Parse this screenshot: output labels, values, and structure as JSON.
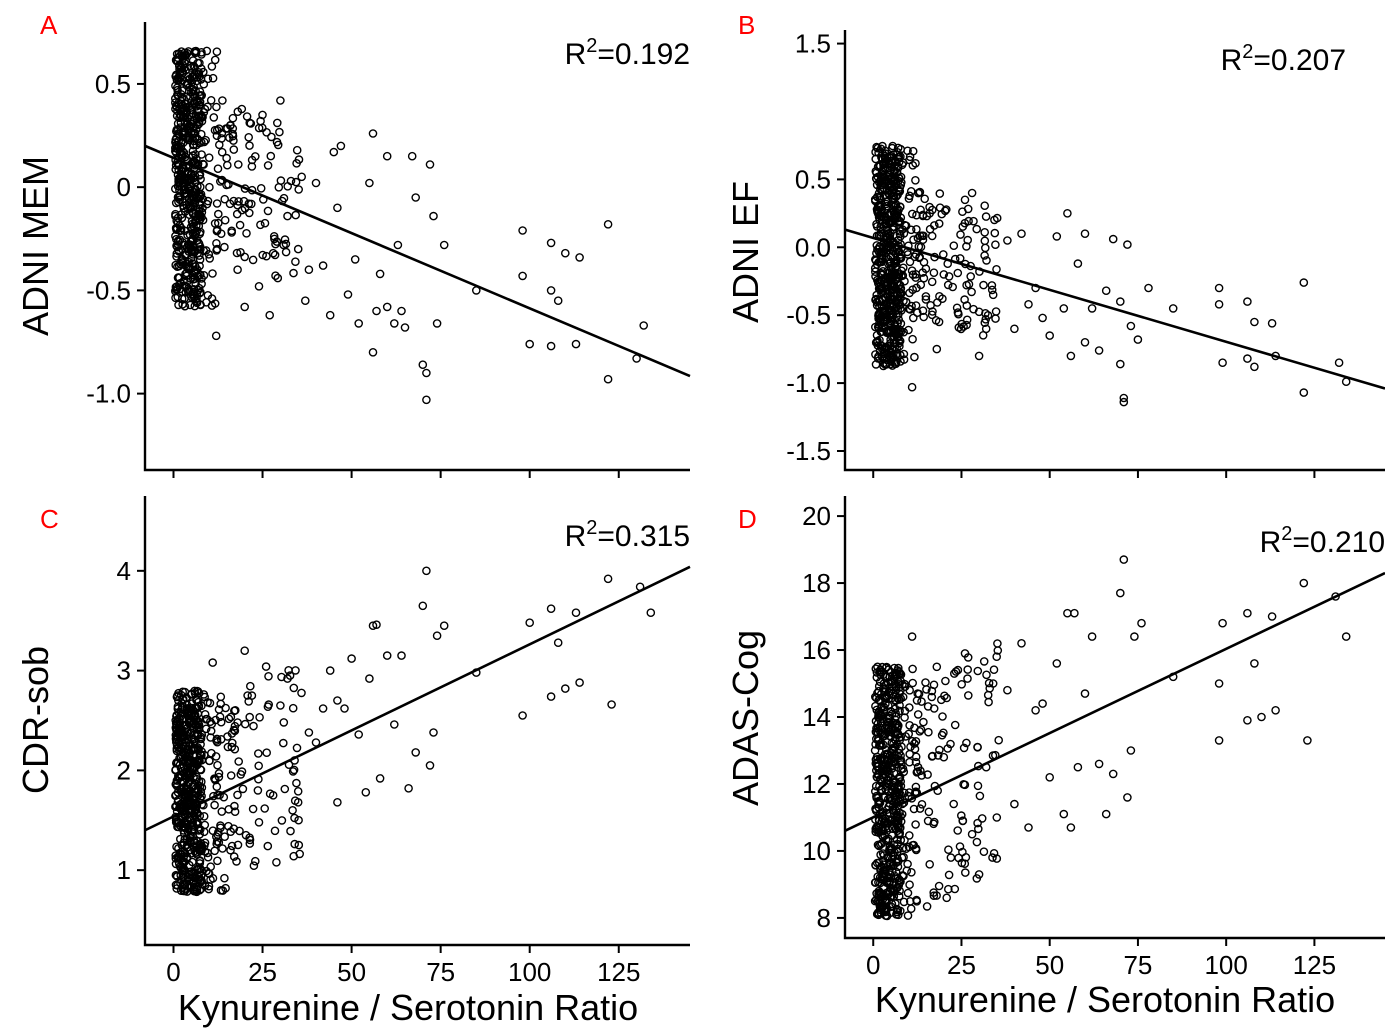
{
  "chart_data": [
    {
      "type": "scatter",
      "panel_label": "A",
      "ylabel": "ADNI MEM",
      "xlabel": "",
      "r2_prefix": "R",
      "r2_sup": "2",
      "r2_value": "=0.192",
      "xlim": [
        -8,
        145
      ],
      "ylim": [
        -1.37,
        0.8
      ],
      "y_ticks": [
        0.5,
        0,
        -0.5,
        -1.0
      ],
      "y_tick_labels": [
        "0.5",
        "0",
        "-0.5",
        "-1.0"
      ],
      "x_ticks": [
        0,
        25,
        50,
        75,
        100,
        125
      ],
      "x_tick_labels": [],
      "fit_line": {
        "x": [
          -8,
          145
        ],
        "y": [
          0.2,
          -0.915
        ]
      },
      "spread": 0.18,
      "cluster_range": [
        -0.58,
        0.66
      ],
      "outer": [
        [
          12,
          -0.72
        ],
        [
          20,
          -0.58
        ],
        [
          25,
          0.35
        ],
        [
          27,
          -0.62
        ],
        [
          30,
          0.42
        ],
        [
          33,
          0.03
        ],
        [
          35,
          -0.3
        ],
        [
          37,
          -0.55
        ],
        [
          40,
          0.02
        ],
        [
          42,
          -0.38
        ],
        [
          44,
          -0.62
        ],
        [
          45,
          0.17
        ],
        [
          47,
          0.2
        ],
        [
          49,
          -0.52
        ],
        [
          51,
          -0.35
        ],
        [
          52,
          -0.66
        ],
        [
          55,
          0.02
        ],
        [
          56,
          0.26
        ],
        [
          56,
          -0.8
        ],
        [
          57,
          -0.6
        ],
        [
          58,
          -0.42
        ],
        [
          60,
          0.15
        ],
        [
          60,
          -0.58
        ],
        [
          62,
          -0.66
        ],
        [
          63,
          -0.28
        ],
        [
          64,
          -0.6
        ],
        [
          65,
          -0.68
        ],
        [
          67,
          0.15
        ],
        [
          68,
          -0.05
        ],
        [
          70,
          -0.86
        ],
        [
          71,
          -0.9
        ],
        [
          71,
          -1.03
        ],
        [
          72,
          0.11
        ],
        [
          73,
          -0.14
        ],
        [
          74,
          -0.66
        ],
        [
          76,
          -0.28
        ],
        [
          85,
          -0.5
        ],
        [
          98,
          -0.21
        ],
        [
          98,
          -0.43
        ],
        [
          100,
          -0.76
        ],
        [
          106,
          -0.27
        ],
        [
          106,
          -0.5
        ],
        [
          108,
          -0.55
        ],
        [
          106,
          -0.77
        ],
        [
          110,
          -0.32
        ],
        [
          114,
          -0.34
        ],
        [
          113,
          -0.76
        ],
        [
          122,
          -0.18
        ],
        [
          122,
          -0.93
        ],
        [
          132,
          -0.67
        ],
        [
          130,
          -0.83
        ],
        [
          16,
          0.3
        ],
        [
          18,
          -0.4
        ],
        [
          22,
          0.1
        ],
        [
          24,
          -0.48
        ],
        [
          28,
          -0.32
        ],
        [
          32,
          -0.14
        ],
        [
          36,
          0.05
        ],
        [
          38,
          -0.4
        ],
        [
          46,
          -0.1
        ]
      ]
    },
    {
      "type": "scatter",
      "panel_label": "B",
      "ylabel": "ADNI EF",
      "xlabel": "",
      "r2_prefix": "R",
      "r2_sup": "2",
      "r2_value": "=0.207",
      "xlim": [
        -8,
        145
      ],
      "ylim": [
        -1.64,
        1.6
      ],
      "y_ticks": [
        1.5,
        0.5,
        0.0,
        -0.5,
        -1.0,
        -1.5
      ],
      "y_tick_labels": [
        "1.5",
        "0.5",
        "0.0",
        "-0.5",
        "-1.0",
        "-1.5"
      ],
      "x_ticks": [
        0,
        25,
        50,
        75,
        100,
        125
      ],
      "x_tick_labels": [],
      "fit_line": {
        "x": [
          -8,
          145
        ],
        "y": [
          0.13,
          -1.04
        ]
      },
      "spread": 0.22,
      "cluster_range": [
        -0.88,
        0.75
      ],
      "outer": [
        [
          11,
          -1.03
        ],
        [
          18,
          -0.75
        ],
        [
          24,
          -0.48
        ],
        [
          26,
          0.35
        ],
        [
          28,
          0.4
        ],
        [
          30,
          -0.8
        ],
        [
          34,
          -0.35
        ],
        [
          38,
          0.05
        ],
        [
          40,
          -0.6
        ],
        [
          42,
          0.1
        ],
        [
          44,
          -0.42
        ],
        [
          46,
          -0.3
        ],
        [
          48,
          -0.52
        ],
        [
          50,
          -0.65
        ],
        [
          52,
          0.08
        ],
        [
          54,
          -0.45
        ],
        [
          55,
          0.25
        ],
        [
          56,
          -0.8
        ],
        [
          58,
          -0.12
        ],
        [
          60,
          0.1
        ],
        [
          60,
          -0.7
        ],
        [
          62,
          -0.45
        ],
        [
          64,
          -0.76
        ],
        [
          66,
          -0.32
        ],
        [
          68,
          0.06
        ],
        [
          70,
          -0.4
        ],
        [
          70,
          -0.86
        ],
        [
          71,
          -1.11
        ],
        [
          71,
          -1.14
        ],
        [
          72,
          0.02
        ],
        [
          73,
          -0.58
        ],
        [
          75,
          -0.68
        ],
        [
          78,
          -0.3
        ],
        [
          85,
          -0.45
        ],
        [
          98,
          -0.3
        ],
        [
          98,
          -0.42
        ],
        [
          99,
          -0.85
        ],
        [
          106,
          -0.4
        ],
        [
          106,
          -0.82
        ],
        [
          108,
          -0.55
        ],
        [
          108,
          -0.88
        ],
        [
          113,
          -0.56
        ],
        [
          114,
          -0.8
        ],
        [
          122,
          -0.26
        ],
        [
          122,
          -1.07
        ],
        [
          132,
          -0.85
        ],
        [
          134,
          -0.99
        ],
        [
          16,
          0.25
        ],
        [
          20,
          -0.2
        ],
        [
          32,
          -0.6
        ]
      ]
    },
    {
      "type": "scatter",
      "panel_label": "C",
      "ylabel": "CDR-sob",
      "xlabel": "Kynurenine / Serotonin Ratio",
      "r2_prefix": "R",
      "r2_sup": "2",
      "r2_value": "=0.315",
      "xlim": [
        -8,
        145
      ],
      "ylim": [
        0.25,
        4.75
      ],
      "y_ticks": [
        4,
        3,
        2,
        1
      ],
      "y_tick_labels": [
        "4",
        "3",
        "2",
        "1"
      ],
      "x_ticks": [
        0,
        25,
        50,
        75,
        100,
        125
      ],
      "x_tick_labels": [
        "0",
        "25",
        "50",
        "75",
        "100",
        "125"
      ],
      "fit_line": {
        "x": [
          -8,
          145
        ],
        "y": [
          1.4,
          4.04
        ]
      },
      "spread": 0.45,
      "cluster_range": [
        0.78,
        2.8
      ],
      "outer": [
        [
          11,
          3.08
        ],
        [
          18,
          2.48
        ],
        [
          22,
          2.75
        ],
        [
          24,
          1.48
        ],
        [
          26,
          3.04
        ],
        [
          28,
          1.75
        ],
        [
          30,
          2.65
        ],
        [
          32,
          2.92
        ],
        [
          35,
          1.68
        ],
        [
          38,
          2.38
        ],
        [
          40,
          2.28
        ],
        [
          42,
          2.62
        ],
        [
          44,
          3.0
        ],
        [
          46,
          1.68
        ],
        [
          48,
          2.62
        ],
        [
          50,
          3.12
        ],
        [
          52,
          2.36
        ],
        [
          54,
          1.78
        ],
        [
          55,
          2.92
        ],
        [
          56,
          3.45
        ],
        [
          57,
          3.46
        ],
        [
          58,
          1.92
        ],
        [
          60,
          3.15
        ],
        [
          62,
          2.46
        ],
        [
          64,
          3.15
        ],
        [
          66,
          1.82
        ],
        [
          68,
          2.18
        ],
        [
          70,
          3.65
        ],
        [
          71,
          4.0
        ],
        [
          72,
          2.05
        ],
        [
          73,
          2.38
        ],
        [
          74,
          3.35
        ],
        [
          76,
          3.45
        ],
        [
          85,
          2.98
        ],
        [
          98,
          2.55
        ],
        [
          100,
          3.48
        ],
        [
          106,
          3.62
        ],
        [
          106,
          2.74
        ],
        [
          108,
          3.28
        ],
        [
          110,
          2.82
        ],
        [
          113,
          3.58
        ],
        [
          114,
          2.88
        ],
        [
          122,
          3.92
        ],
        [
          123,
          2.66
        ],
        [
          131,
          3.84
        ],
        [
          134,
          3.58
        ],
        [
          16,
          1.2
        ],
        [
          20,
          3.2
        ],
        [
          34,
          2.1
        ],
        [
          46,
          2.7
        ]
      ]
    },
    {
      "type": "scatter",
      "panel_label": "D",
      "ylabel": "ADAS-Cog",
      "xlabel": "Kynurenine / Serotonin Ratio",
      "r2_prefix": "R",
      "r2_sup": "2",
      "r2_value": "=0.210",
      "xlim": [
        -8,
        145
      ],
      "ylim": [
        7.4,
        20.6
      ],
      "y_ticks": [
        20,
        18,
        16,
        14,
        12,
        10,
        8
      ],
      "y_tick_labels": [
        "20",
        "18",
        "16",
        "14",
        "12",
        "10",
        "8"
      ],
      "x_ticks": [
        0,
        25,
        50,
        75,
        100,
        125
      ],
      "x_tick_labels": [
        "0",
        "25",
        "50",
        "75",
        "100",
        "125"
      ],
      "fit_line": {
        "x": [
          -8,
          145
        ],
        "y": [
          10.6,
          18.3
        ]
      },
      "spread": 1.6,
      "cluster_range": [
        8.05,
        15.5
      ],
      "outer": [
        [
          11,
          16.4
        ],
        [
          18,
          15.5
        ],
        [
          22,
          9.8
        ],
        [
          24,
          15.4
        ],
        [
          26,
          15.9
        ],
        [
          28,
          10.5
        ],
        [
          30,
          9.3
        ],
        [
          32,
          12.5
        ],
        [
          35,
          11.0
        ],
        [
          38,
          14.8
        ],
        [
          40,
          11.4
        ],
        [
          42,
          16.2
        ],
        [
          44,
          10.7
        ],
        [
          46,
          14.2
        ],
        [
          48,
          14.4
        ],
        [
          50,
          12.2
        ],
        [
          52,
          15.6
        ],
        [
          54,
          11.1
        ],
        [
          55,
          17.1
        ],
        [
          56,
          10.7
        ],
        [
          57,
          17.1
        ],
        [
          58,
          12.5
        ],
        [
          60,
          14.7
        ],
        [
          62,
          16.4
        ],
        [
          64,
          12.6
        ],
        [
          66,
          11.1
        ],
        [
          68,
          12.3
        ],
        [
          70,
          17.7
        ],
        [
          71,
          18.7
        ],
        [
          72,
          11.6
        ],
        [
          73,
          13.0
        ],
        [
          74,
          16.4
        ],
        [
          76,
          16.8
        ],
        [
          85,
          15.2
        ],
        [
          98,
          15.0
        ],
        [
          98,
          13.3
        ],
        [
          99,
          16.8
        ],
        [
          106,
          17.1
        ],
        [
          106,
          13.9
        ],
        [
          108,
          15.6
        ],
        [
          110,
          14.0
        ],
        [
          113,
          17.0
        ],
        [
          114,
          14.2
        ],
        [
          122,
          18.0
        ],
        [
          123,
          13.3
        ],
        [
          131,
          17.6
        ],
        [
          134,
          16.4
        ],
        [
          16,
          9.6
        ],
        [
          20,
          12.8
        ],
        [
          34,
          15.0
        ]
      ]
    }
  ]
}
